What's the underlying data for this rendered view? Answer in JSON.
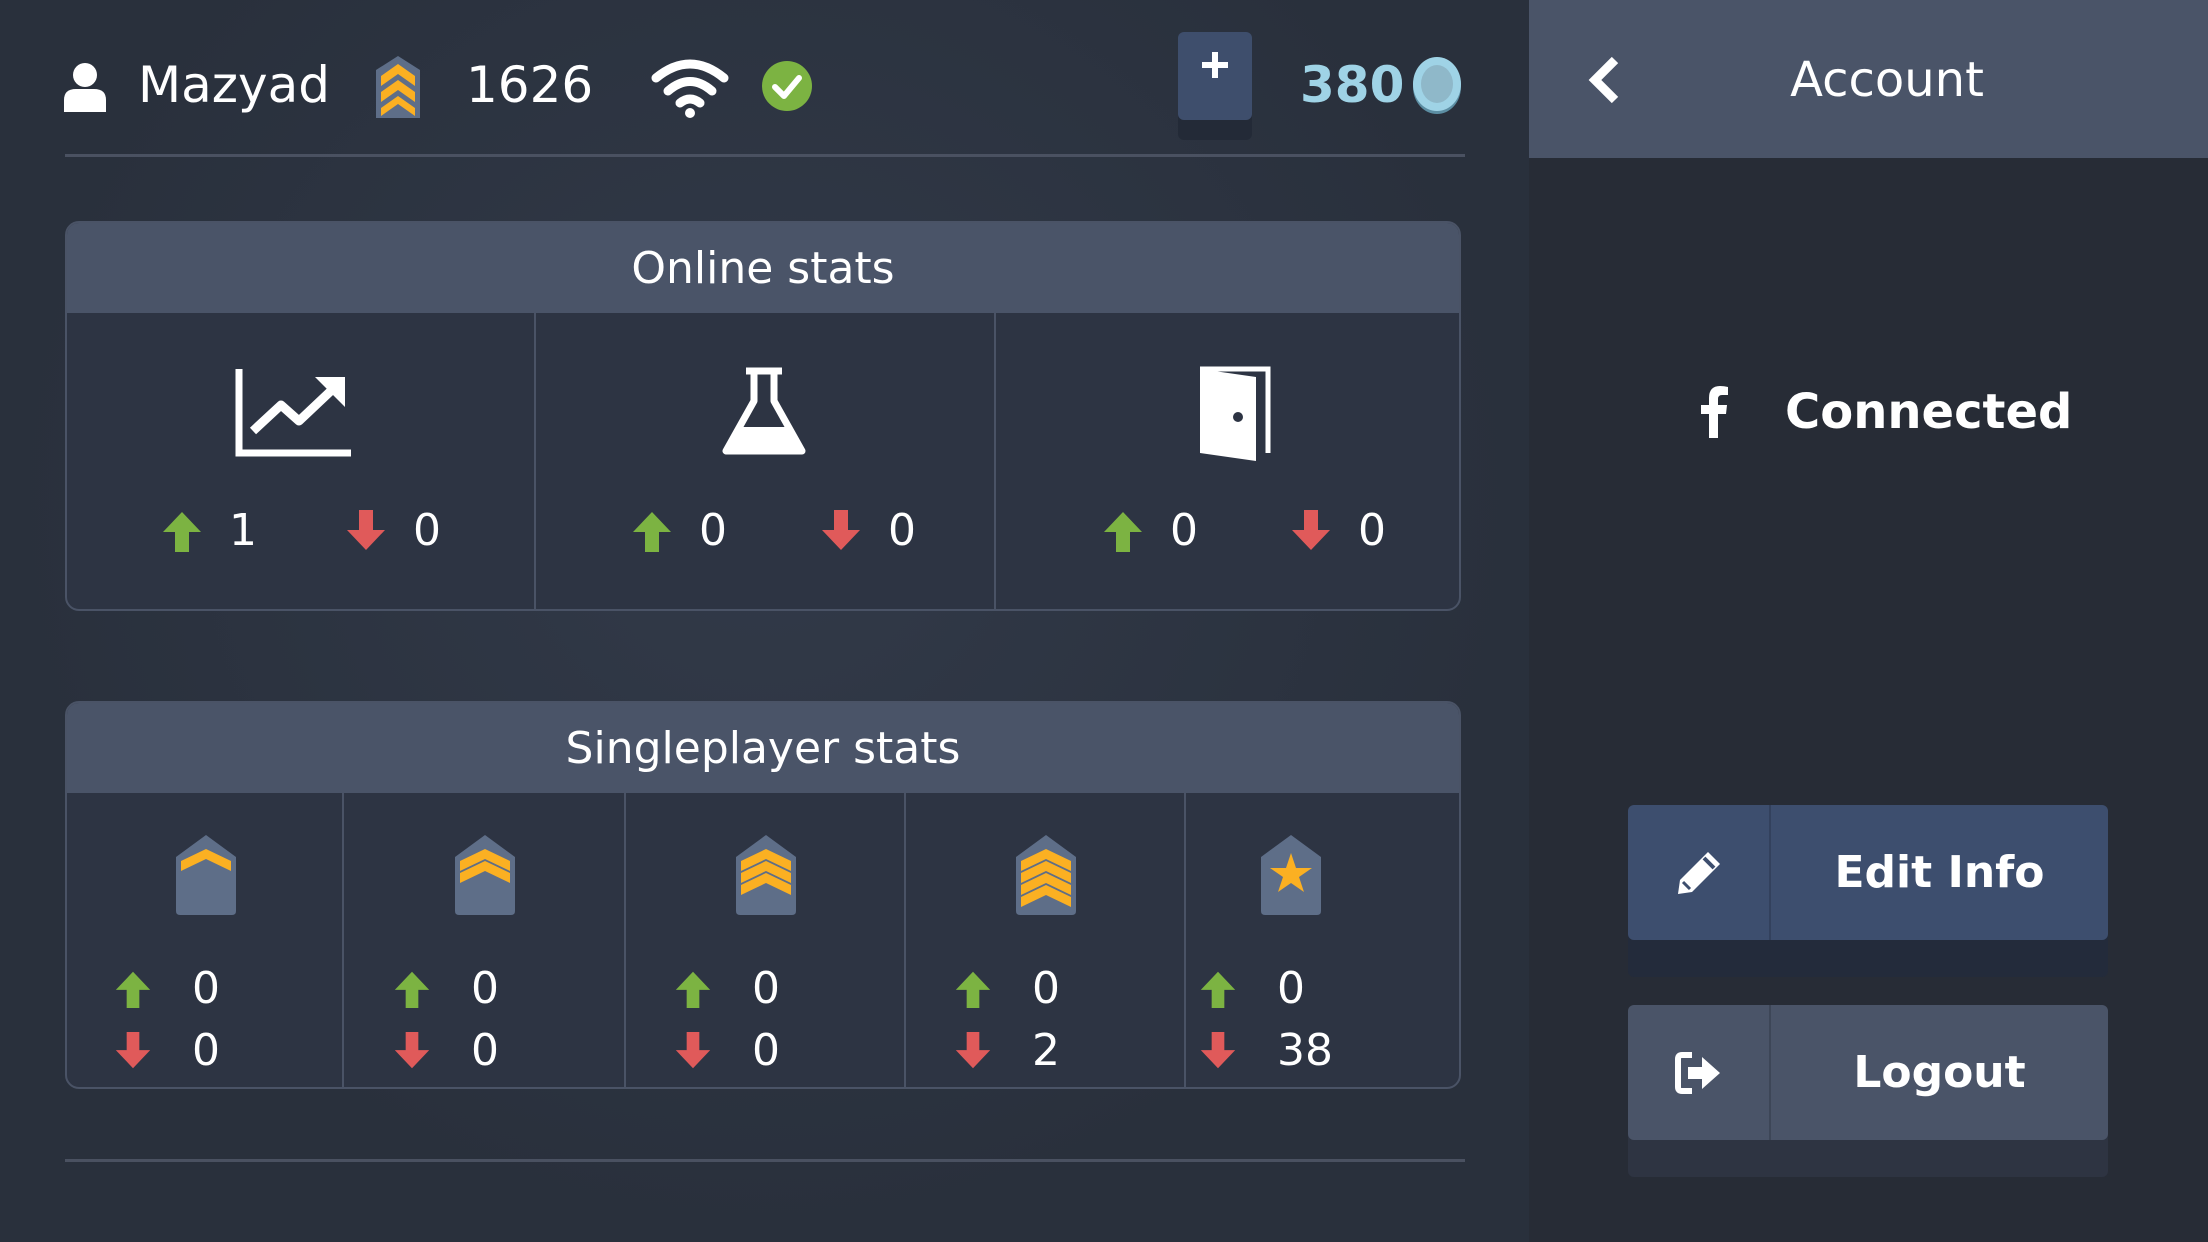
{
  "header": {
    "username": "Mazyad",
    "rating": "1626",
    "coins": "380",
    "icons": [
      "user-icon",
      "rank-icon",
      "wifi-icon",
      "check-icon",
      "plus-icon",
      "coin-icon"
    ]
  },
  "online_stats": {
    "title": "Online stats",
    "columns": [
      {
        "icon": "trend-chart-icon",
        "up": "1",
        "down": "0"
      },
      {
        "icon": "flask-icon",
        "up": "0",
        "down": "0"
      },
      {
        "icon": "door-icon",
        "up": "0",
        "down": "0"
      }
    ]
  },
  "singleplayer_stats": {
    "title": "Singleplayer stats",
    "columns": [
      {
        "icon": "rank-1-chevron-icon",
        "up": "0",
        "down": "0"
      },
      {
        "icon": "rank-2-chevron-icon",
        "up": "0",
        "down": "0"
      },
      {
        "icon": "rank-3-chevron-icon",
        "up": "0",
        "down": "0"
      },
      {
        "icon": "rank-4-chevron-icon",
        "up": "0",
        "down": "2"
      },
      {
        "icon": "rank-star-icon",
        "up": "0",
        "down": "38"
      }
    ]
  },
  "account": {
    "title": "Account",
    "facebook_status": "Connected",
    "edit_label": "Edit Info",
    "logout_label": "Logout"
  },
  "colors": {
    "up": "#7cb342",
    "down": "#e05a5a",
    "gold": "#fbb022",
    "coin": "#9fd3e6",
    "check": "#7cb342"
  }
}
